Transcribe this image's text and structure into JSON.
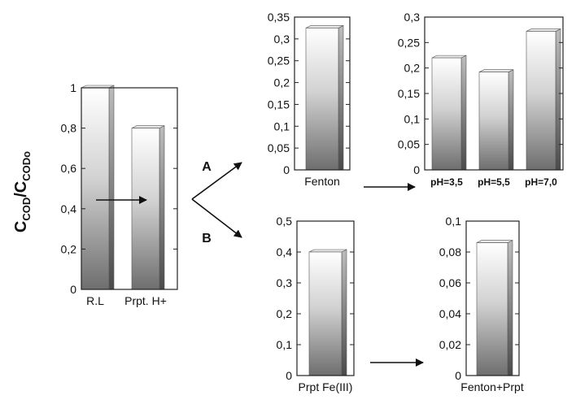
{
  "y_axis_label": {
    "main": "C",
    "sub1": "COD",
    "sep": "/C",
    "sub2": "CODo"
  },
  "labels": {
    "A": "A",
    "B": "B"
  },
  "chart_data": [
    {
      "id": "p1",
      "type": "bar",
      "categories": [
        "R.L",
        "Prpt. H+"
      ],
      "values": [
        1.0,
        0.8
      ],
      "ylim": [
        0,
        1
      ],
      "yticks": [
        "0",
        "0,2",
        "0,4",
        "0,6",
        "0,8",
        "1"
      ],
      "grid": false,
      "xlabel": "",
      "ylabel": ""
    },
    {
      "id": "p2",
      "type": "bar",
      "categories": [
        "Fenton"
      ],
      "values": [
        0.325
      ],
      "ylim": [
        0,
        0.35
      ],
      "yticks": [
        "0",
        "0,05",
        "0,1",
        "0,15",
        "0,2",
        "0,25",
        "0,3",
        "0,35"
      ],
      "grid": false,
      "xlabel": "",
      "ylabel": ""
    },
    {
      "id": "p3",
      "type": "bar",
      "categories": [
        "pH=3,5",
        "pH=5,5",
        "pH=7,0"
      ],
      "values": [
        0.22,
        0.192,
        0.272
      ],
      "ylim": [
        0,
        0.3
      ],
      "yticks": [
        "0",
        "0,05",
        "0,1",
        "0,15",
        "0,2",
        "0,25",
        "0,3"
      ],
      "grid": false,
      "xlabel": "",
      "ylabel": ""
    },
    {
      "id": "p4",
      "type": "bar",
      "categories": [
        "Prpt Fe(III)"
      ],
      "values": [
        0.4
      ],
      "ylim": [
        0,
        0.5
      ],
      "yticks": [
        "0",
        "0,1",
        "0,2",
        "0,3",
        "0,4",
        "0,5"
      ],
      "grid": false,
      "xlabel": "",
      "ylabel": ""
    },
    {
      "id": "p5",
      "type": "bar",
      "categories": [
        "Fenton+Prpt"
      ],
      "values": [
        0.086
      ],
      "ylim": [
        0,
        0.1
      ],
      "yticks": [
        "0",
        "0,02",
        "0,04",
        "0,06",
        "0,08",
        "0,1"
      ],
      "grid": false,
      "xlabel": "",
      "ylabel": ""
    }
  ]
}
